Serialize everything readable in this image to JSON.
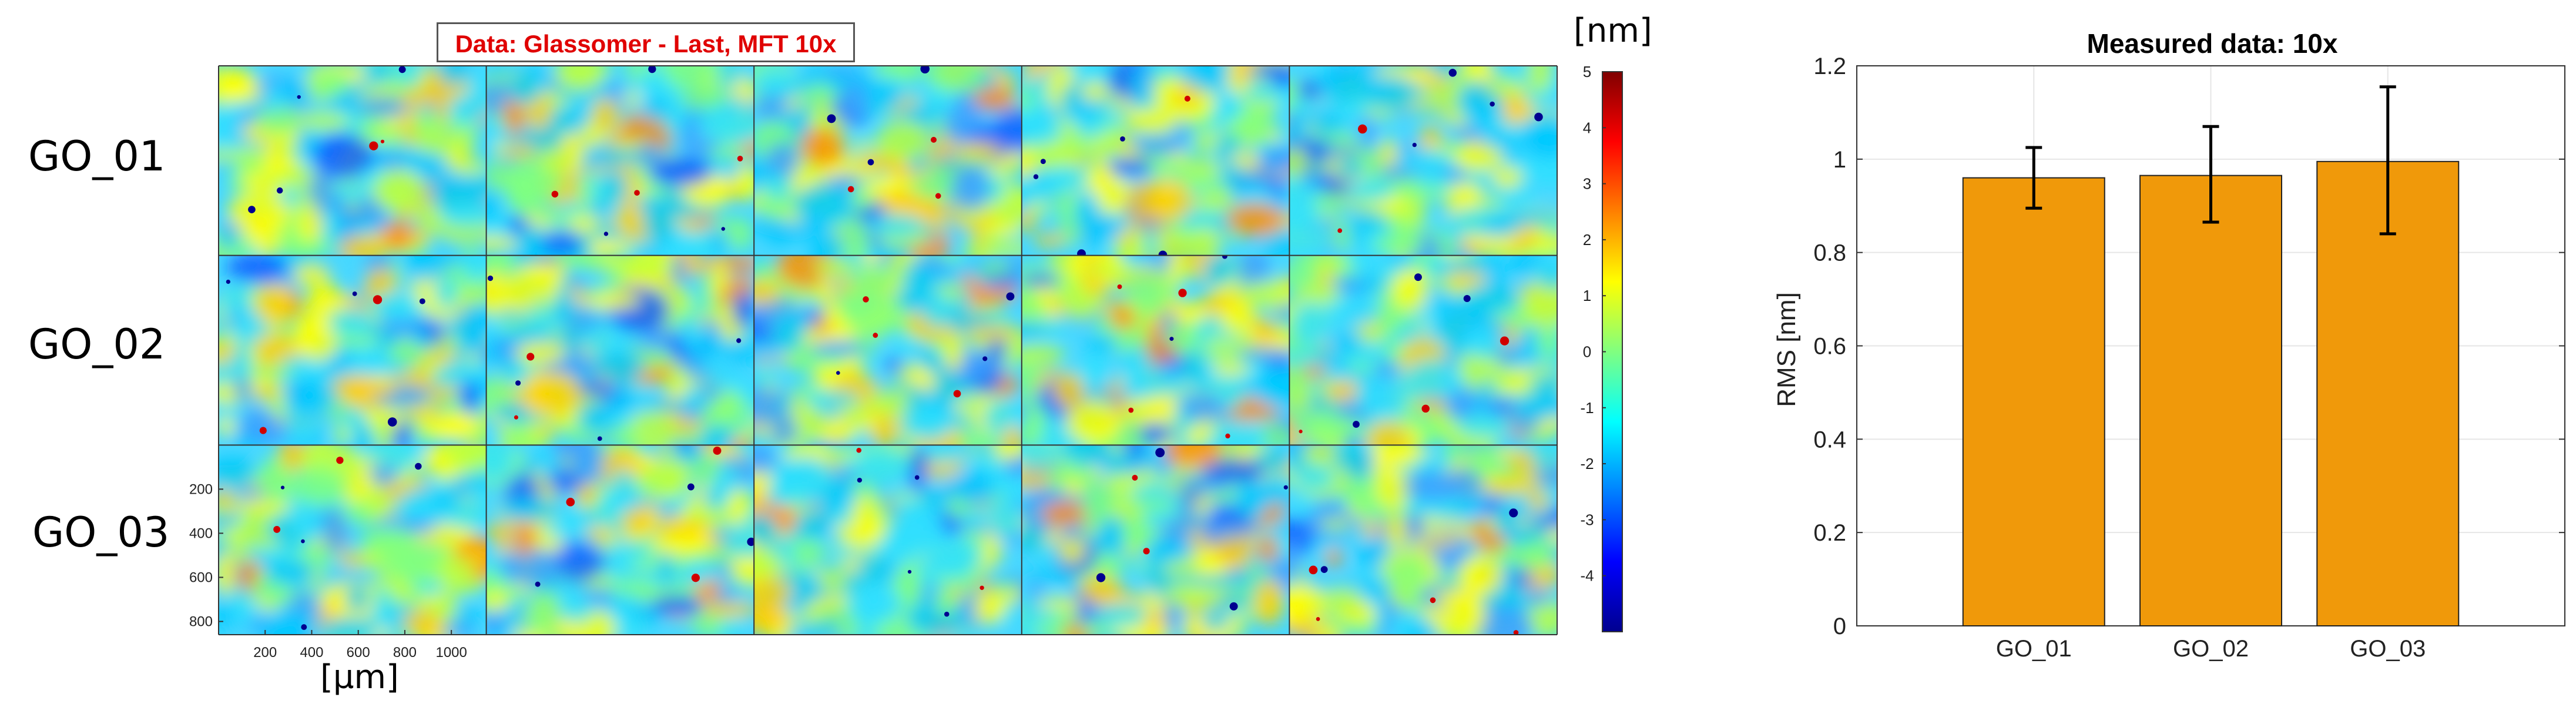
{
  "heatmap": {
    "title": "Data: Glassomer - Last, MFT 10x",
    "rows": [
      "GO_01",
      "GO_02",
      "GO_03"
    ],
    "tiles_per_row": 5,
    "x_ticks": [
      "200",
      "400",
      "600",
      "800",
      "1000"
    ],
    "y_ticks": [
      "200",
      "400",
      "600",
      "800"
    ],
    "x_unit": "[µm]",
    "colorbar_unit": "[nm]",
    "colorbar_ticks": [
      "5",
      "4",
      "3",
      "2",
      "1",
      "0",
      "-1",
      "-2",
      "-3",
      "-4"
    ],
    "colorbar_range": [
      -5,
      5
    ],
    "colormap": [
      "#00008f",
      "#0000ff",
      "#0080ff",
      "#00ffff",
      "#80ff80",
      "#ffff00",
      "#ff8000",
      "#ff0000",
      "#800000"
    ]
  },
  "chart_data": {
    "type": "bar",
    "title": "Measured data: 10x",
    "categories": [
      "GO_01",
      "GO_02",
      "GO_03"
    ],
    "values": [
      0.96,
      0.965,
      0.995
    ],
    "errors": [
      [
        0.895,
        1.025
      ],
      [
        0.865,
        1.07
      ],
      [
        0.84,
        1.155
      ]
    ],
    "ylabel": "RMS [nm]",
    "xlabel": "",
    "ylim": [
      0,
      1.2
    ],
    "yticks": [
      "0",
      "0.2",
      "0.4",
      "0.6",
      "0.8",
      "1",
      "1.2"
    ],
    "bar_color": "#f0990a",
    "grid": true
  }
}
